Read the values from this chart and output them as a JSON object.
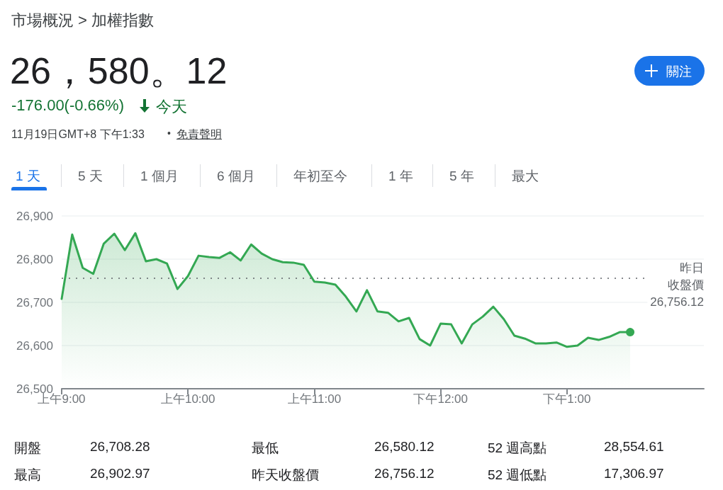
{
  "chart_data": {
    "type": "area",
    "title": "市場概況 > 加權指數",
    "subtitle": "26，580。12",
    "annotations": [
      "-176.00(-0.66%)",
      "今天",
      "11月19日GMT+8 下午1:33",
      "免責聲明",
      "關注",
      "1 天",
      "5 天",
      "1 個月",
      "6 個月",
      "年初至今",
      "1 年",
      "5 年",
      "最大",
      "開盤",
      "26,708.28",
      "最低",
      "26,580.12",
      "52 週高點",
      "28,554.61",
      "最高",
      "26,902.97",
      "昨天收盤價",
      "26,756.12",
      "52 週低點",
      "17,306.97",
      "•"
    ],
    "categories": [
      "上午9:00",
      null,
      null,
      null,
      null,
      null,
      null,
      null,
      null,
      null,
      null,
      null,
      "上午10:00",
      null,
      null,
      null,
      null,
      null,
      null,
      null,
      null,
      null,
      null,
      null,
      "上午11:00",
      null,
      null,
      null,
      null,
      null,
      null,
      null,
      null,
      null,
      null,
      null,
      "下午12:00",
      null,
      null,
      null,
      null,
      null,
      null,
      null,
      null,
      null,
      null,
      null,
      "下午1:00",
      null,
      null,
      null,
      null,
      null,
      null,
      null,
      null,
      null,
      null,
      null,
      null,
      null
    ],
    "series": [
      {
        "color": "#34a853",
        "values": [
          26708,
          26857,
          26780,
          26766,
          26836,
          26859,
          26821,
          26860,
          26795,
          26800,
          26790,
          26731,
          26761,
          26808,
          26805,
          26803,
          26816,
          26797,
          26834,
          26813,
          26800,
          26793,
          26792,
          26787,
          26748,
          26746,
          26741,
          26713,
          26679,
          26728,
          26679,
          26676,
          26656,
          26664,
          26615,
          26600,
          26651,
          26649,
          26605,
          26649,
          26667,
          26690,
          26661,
          26623,
          26616,
          26605,
          26605,
          26607,
          26597,
          26600,
          26618,
          26613,
          26620,
          26631,
          26631,
          null,
          null,
          null,
          null,
          null,
          null,
          null
        ]
      }
    ],
    "ylim": [
      26500,
      26900
    ],
    "yticks": [
      {
        "value": 26500,
        "label": "26,500"
      },
      {
        "value": 26600,
        "label": "26,600"
      },
      {
        "value": 26700,
        "label": "26,700"
      },
      {
        "value": 26800,
        "label": "26,800"
      },
      {
        "value": 26900,
        "label": "26,900"
      }
    ],
    "ref_lines": [
      {
        "axis": "y",
        "value": 26756.12,
        "label": "昨日收盤價",
        "color": "#5f6368",
        "line_style": "dotted"
      }
    ],
    "grid": "y"
  }
}
